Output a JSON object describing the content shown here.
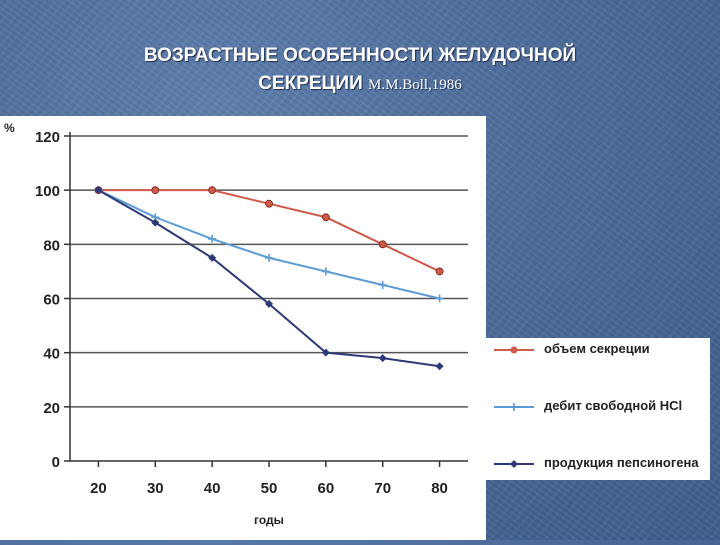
{
  "slide": {
    "title_line1": "ВОЗРАСТНЫЕ ОСОБЕННОСТИ ЖЕЛУДОЧНОЙ",
    "title_line2": "СЕКРЕЦИИ",
    "reference": "M.M.Boll,1986"
  },
  "colors": {
    "background": "#4d6c9c",
    "grid": "#555555",
    "axis": "#333333"
  },
  "chart_data": {
    "type": "line",
    "x": [
      20,
      30,
      40,
      50,
      60,
      70,
      80
    ],
    "xlabel": "годы",
    "ylabel": "%",
    "ylim": [
      0,
      120
    ],
    "yticks": [
      0,
      20,
      40,
      60,
      80,
      100,
      120
    ],
    "grid": true,
    "legend_position": "right",
    "series": [
      {
        "name": "объем секреции",
        "values": [
          100,
          100,
          100,
          95,
          90,
          80,
          70
        ],
        "color": "#cf5a4a",
        "marker": "circle"
      },
      {
        "name": "дебит свободной HCl",
        "values": [
          100,
          90,
          82,
          75,
          70,
          65,
          60
        ],
        "color": "#5b9bd5",
        "marker": "plus"
      },
      {
        "name": "продукция пепсиногена",
        "values": [
          100,
          88,
          75,
          58,
          40,
          38,
          35
        ],
        "color": "#2e3a78",
        "marker": "diamond"
      }
    ]
  }
}
